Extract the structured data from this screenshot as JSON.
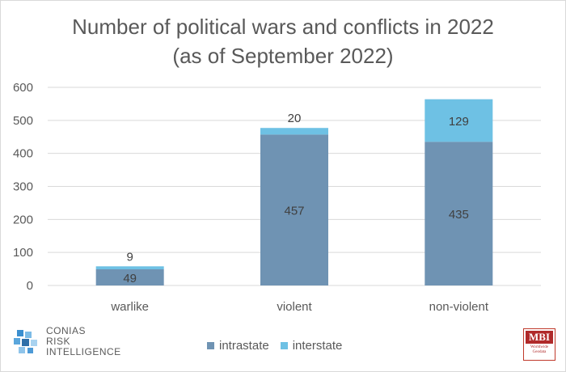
{
  "title_line1": "Number of political wars and conflicts in 2022",
  "title_line2": "(as of September 2022)",
  "colors": {
    "intrastate": "#6f93b3",
    "interstate": "#6ec1e4",
    "grid": "#d9d9d9",
    "text": "#595959"
  },
  "chart_data": {
    "type": "bar",
    "stacked": true,
    "title": "Number of political wars and conflicts in 2022 (as of September 2022)",
    "categories": [
      "warlike",
      "violent",
      "non-violent"
    ],
    "series": [
      {
        "name": "intrastate",
        "values": [
          49,
          457,
          435
        ]
      },
      {
        "name": "interstate",
        "values": [
          9,
          20,
          129
        ]
      }
    ],
    "ylim": [
      0,
      600
    ],
    "yticks": [
      0,
      100,
      200,
      300,
      400,
      500,
      600
    ],
    "grid": true,
    "legend": "bottom"
  },
  "legend": {
    "intrastate": "intrastate",
    "interstate": "interstate"
  },
  "logos": {
    "conias_line1": "CONIAS",
    "conias_line2": "RISK",
    "conias_line3": "INTELLIGENCE",
    "mbi_title": "MBI",
    "mbi_sub1": "Worldwide",
    "mbi_sub2": "Geodata"
  }
}
